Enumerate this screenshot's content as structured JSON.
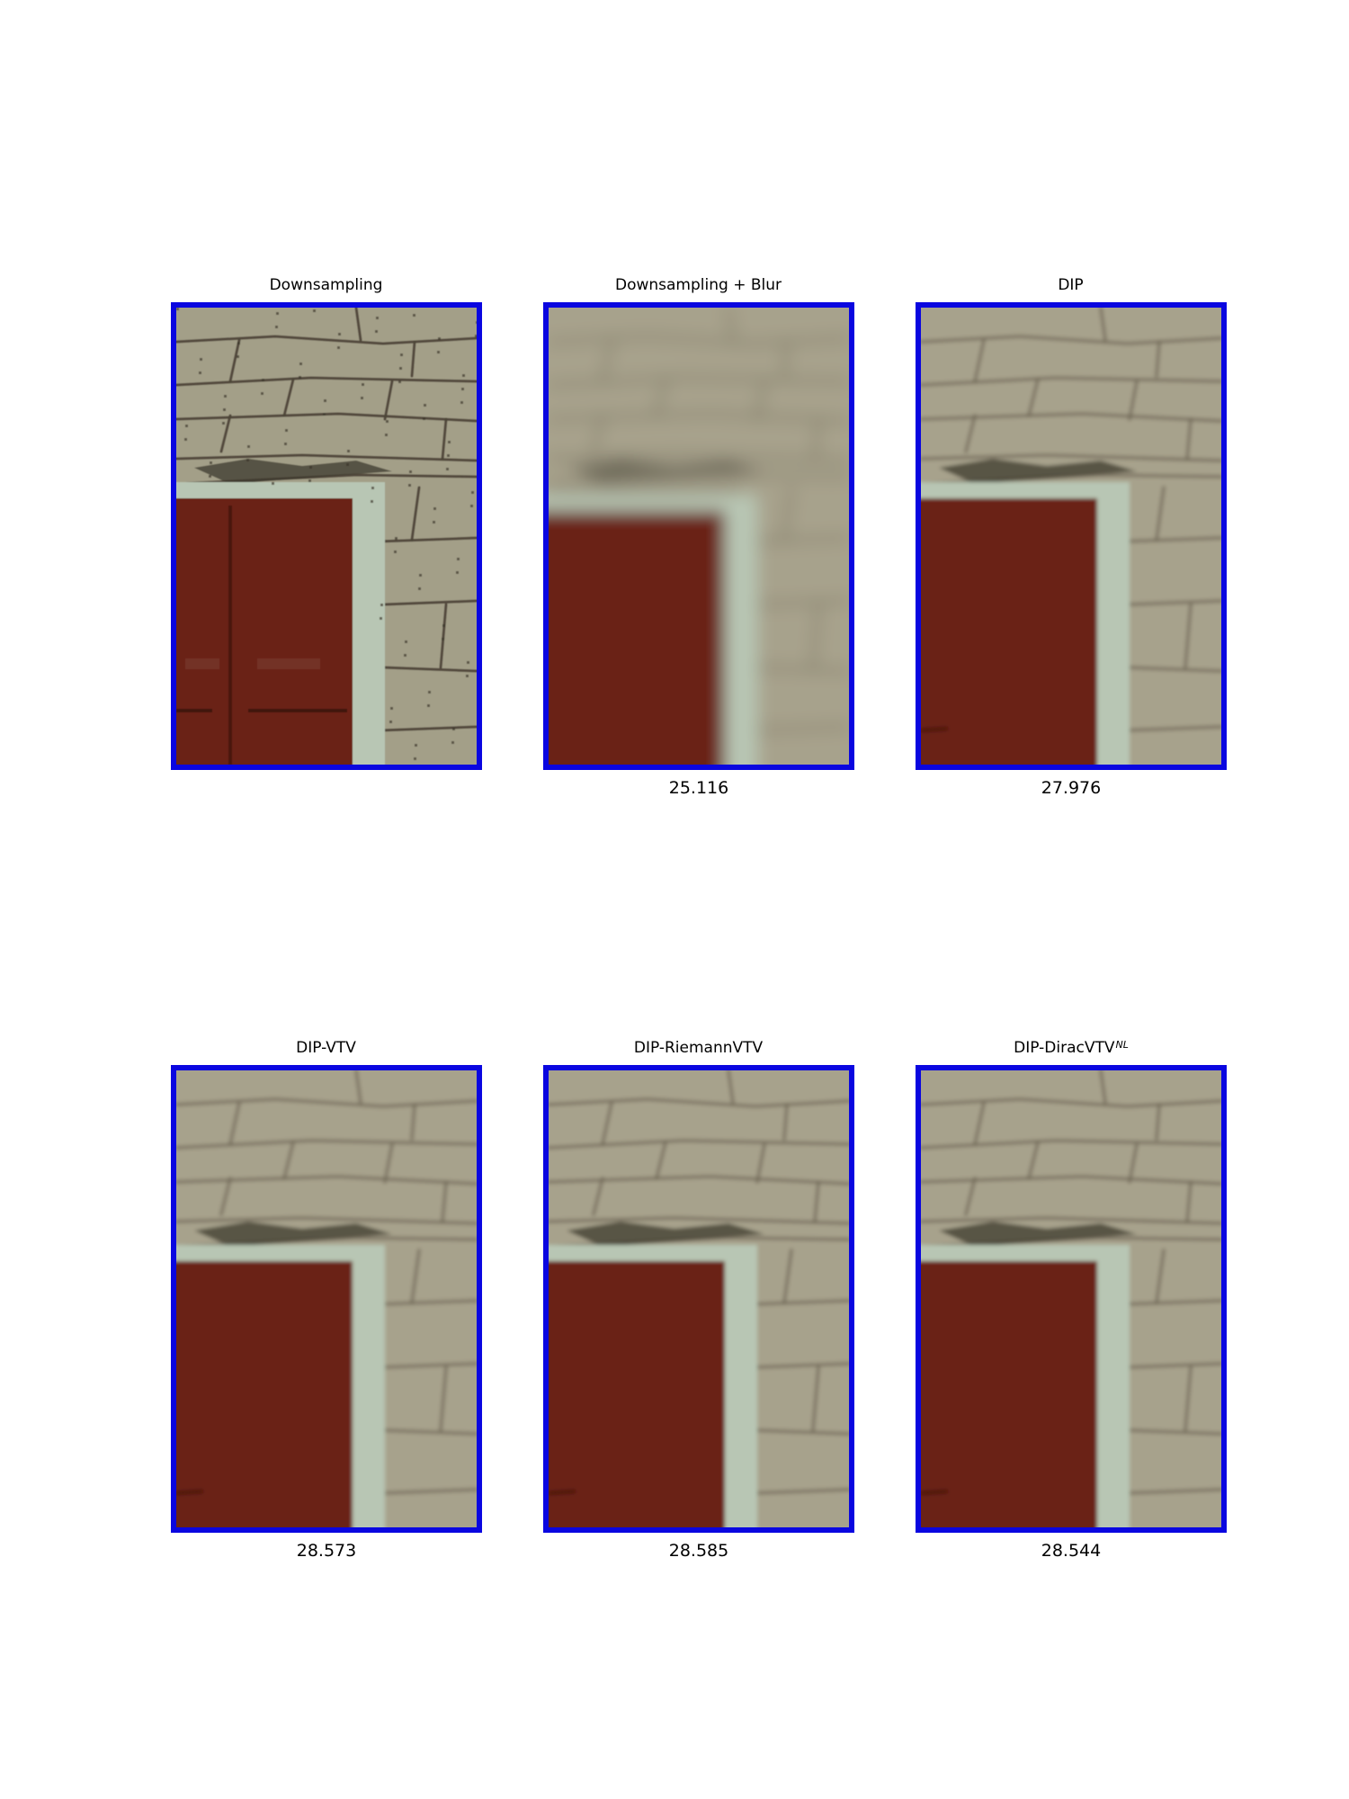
{
  "figure": {
    "panels": [
      {
        "title": "Downsampling",
        "title_sup": "",
        "metric": "",
        "style": "sharp"
      },
      {
        "title": "Downsampling + Blur",
        "title_sup": "",
        "metric": "25.116",
        "style": "blur"
      },
      {
        "title": "DIP",
        "title_sup": "",
        "metric": "27.976",
        "style": "dip"
      },
      {
        "title": "DIP-VTV",
        "title_sup": "",
        "metric": "28.573",
        "style": "smooth"
      },
      {
        "title": "DIP-RiemannVTV",
        "title_sup": "",
        "metric": "28.585",
        "style": "smooth"
      },
      {
        "title": "DIP-DiracVTV",
        "title_sup": "NL",
        "metric": "28.544",
        "style": "smooth"
      }
    ]
  },
  "colors": {
    "frame_border": "#0a06e0",
    "wall": "#a7a28c",
    "door": "#6a2416",
    "trim": "#b8c6b4",
    "mortar": "#6f6656"
  }
}
